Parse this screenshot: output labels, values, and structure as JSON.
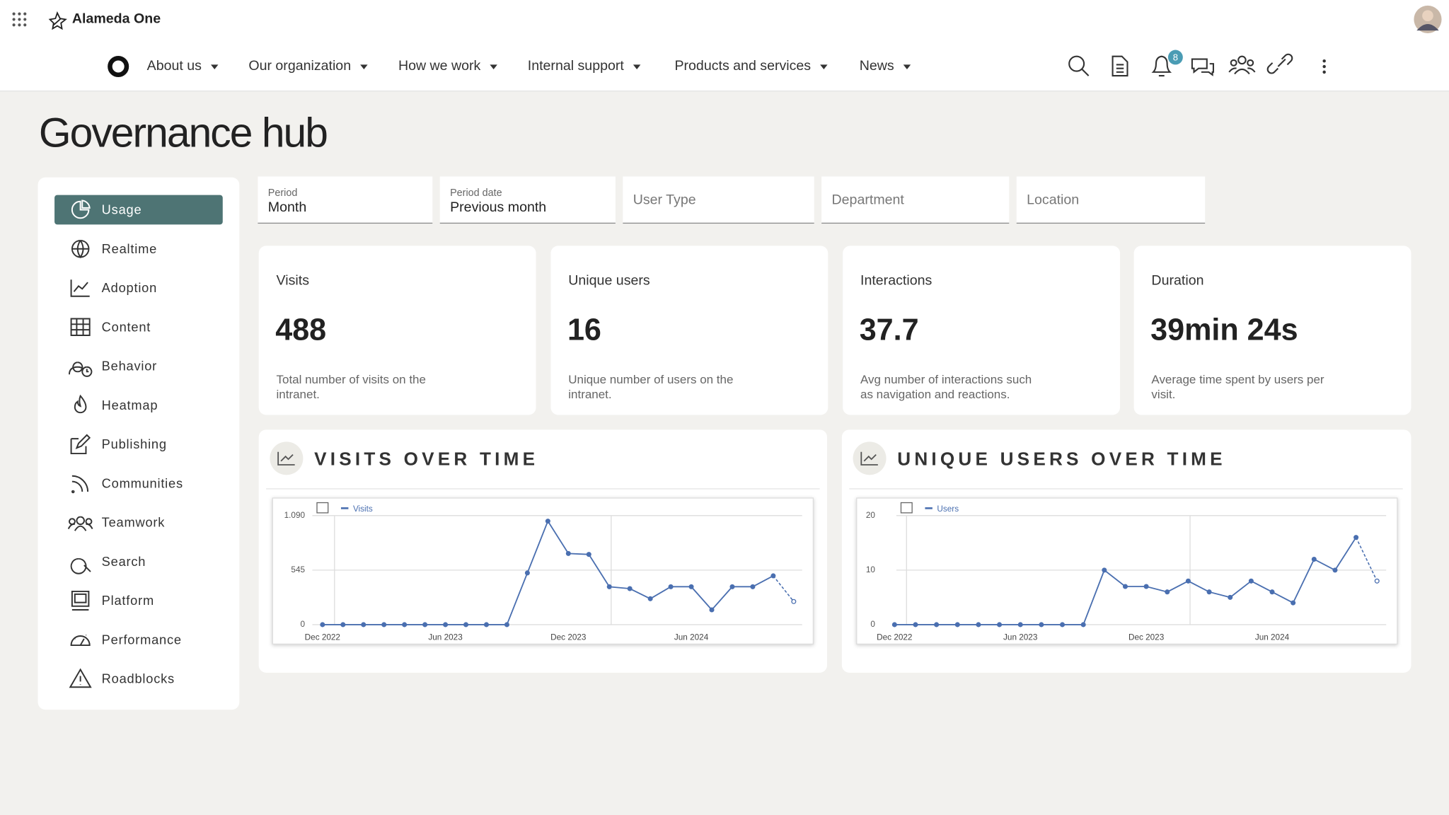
{
  "header": {
    "app_name": "Alameda One",
    "notification_count": 8,
    "nav": [
      "About us",
      "Our organization",
      "How we work",
      "Internal support",
      "Products and services",
      "News"
    ]
  },
  "page_title": "Governance hub",
  "sidebar": {
    "items": [
      "Usage",
      "Realtime",
      "Adoption",
      "Content",
      "Behavior",
      "Heatmap",
      "Publishing",
      "Communities",
      "Teamwork",
      "Search",
      "Platform",
      "Performance",
      "Roadblocks"
    ]
  },
  "filters": [
    {
      "label": "Period",
      "value": "Month"
    },
    {
      "label": "Period date",
      "value": "Previous month"
    },
    {
      "placeholder": "User Type"
    },
    {
      "placeholder": "Department"
    },
    {
      "placeholder": "Location"
    }
  ],
  "kpis": [
    {
      "title": "Visits",
      "value": 488,
      "description": "Total number of visits on the intranet."
    },
    {
      "title": "Unique users",
      "value": 16,
      "description": "Unique number of users on the intranet."
    },
    {
      "title": "Interactions",
      "value": 37.7,
      "description": "Avg number of interactions such as navigation and reactions."
    },
    {
      "title": "Duration",
      "value": "39min 24s",
      "description": "Average time spent by users per visit."
    }
  ],
  "chart_data": [
    {
      "type": "line",
      "title": "VISITS OVER TIME",
      "categories": [
        "Dec 2022",
        null,
        null,
        null,
        null,
        null,
        "Jun 2023",
        null,
        null,
        null,
        null,
        null,
        "Dec 2023",
        null,
        null,
        null,
        null,
        null,
        "Jun 2024",
        null,
        null,
        null,
        null,
        null
      ],
      "series": [
        {
          "name": "Visits",
          "color": "#4a6fb0",
          "values": [
            0,
            0,
            0,
            0,
            0,
            0,
            0,
            0,
            0,
            0,
            517,
            1035,
            711,
            702,
            379,
            360,
            259,
            379,
            379,
            148,
            379,
            379,
            488,
            231
          ]
        }
      ],
      "ylim": [
        0,
        1090
      ],
      "yticks": [
        0,
        545,
        {
          "value": 1090,
          "label": "1.090"
        }
      ],
      "grid": true
    },
    {
      "type": "line",
      "title": "UNIQUE USERS OVER TIME",
      "categories": [
        "Dec 2022",
        null,
        null,
        null,
        null,
        null,
        "Jun 2023",
        null,
        null,
        null,
        null,
        null,
        "Dec 2023",
        null,
        null,
        null,
        null,
        null,
        "Jun 2024",
        null,
        null,
        null,
        null,
        null
      ],
      "series": [
        {
          "name": "Users",
          "color": "#4a6fb0",
          "values": [
            0,
            0,
            0,
            0,
            0,
            0,
            0,
            0,
            0,
            0,
            10,
            7,
            7,
            6,
            8,
            6,
            5,
            8,
            6,
            4,
            12,
            10,
            16,
            8
          ]
        }
      ],
      "ylim": [
        0,
        20
      ],
      "yticks": [
        0,
        10,
        20
      ],
      "grid": true
    }
  ]
}
